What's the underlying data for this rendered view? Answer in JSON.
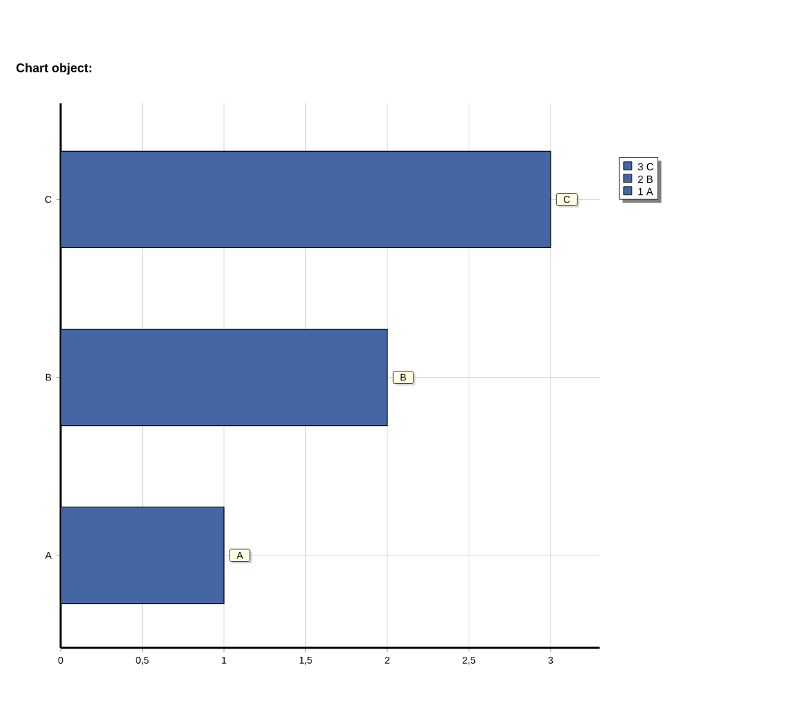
{
  "chart_data": {
    "type": "bar",
    "orientation": "horizontal",
    "title": "Chart object:",
    "categories": [
      "C",
      "B",
      "A"
    ],
    "values": [
      3,
      2,
      1
    ],
    "value_labels": [
      "C",
      "B",
      "A"
    ],
    "color": "#4466a3",
    "xlim": [
      0,
      3.3
    ],
    "xticks": [
      0,
      {
        "value": 0.5,
        "label": "0,5"
      },
      1,
      {
        "value": 1.5,
        "label": "1,5"
      },
      2,
      {
        "value": 2.5,
        "label": "2,5"
      },
      3
    ],
    "grid": true,
    "annotations": [
      "3 C",
      "2 B",
      "1 A"
    ]
  }
}
